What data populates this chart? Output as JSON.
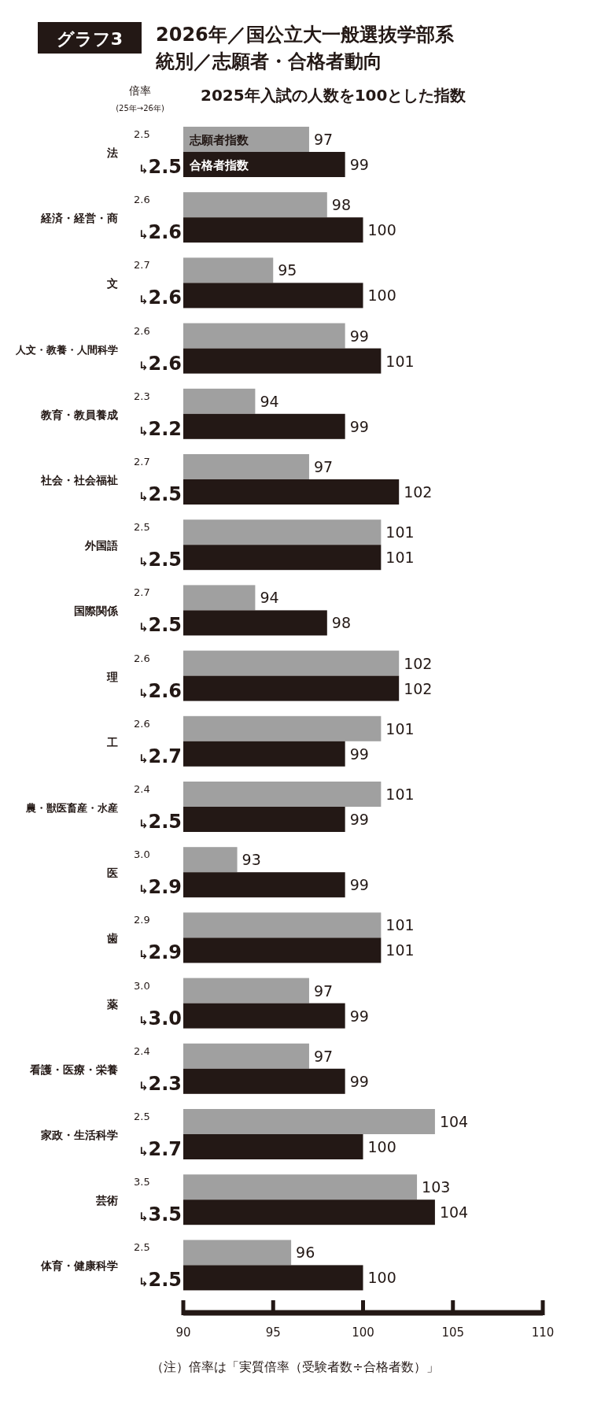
{
  "chart_data": {
    "type": "bar",
    "orientation": "horizontal",
    "title": "2026年／国公立大一般選抜学部系統別／志願者・合格者動向",
    "subtitle": "2025年入試の人数を100とした指数",
    "annotations": [
      "グラフ3",
      "倍率",
      "(25年→26年)",
      "（注）倍率は「実質倍率（受験者数÷合格者数）」",
      "2.5",
      "↳2.5",
      "2.6",
      "↳2.6",
      "2.7",
      "↳2.6",
      "2.6",
      "↳2.6",
      "2.3",
      "↳2.2",
      "2.7",
      "↳2.5",
      "2.5",
      "↳2.5",
      "2.7",
      "↳2.5",
      "2.6",
      "↳2.6",
      "2.6",
      "↳2.7",
      "2.4",
      "↳2.5",
      "3.0",
      "↳2.9",
      "2.9",
      "↳2.9",
      "3.0",
      "↳3.0",
      "2.4",
      "↳2.3",
      "2.5",
      "↳2.7",
      "3.5",
      "↳3.5",
      "2.5",
      "↳2.5"
    ],
    "categories": [
      "法",
      "経済・経営・商",
      "文",
      "人文・教養・人間科学",
      "教育・教員養成",
      "社会・社会福祉",
      "外国語",
      "国際関係",
      "理",
      "工",
      "農・獣医畜産・水産",
      "医",
      "歯",
      "薬",
      "看護・医療・栄養",
      "家政・生活科学",
      "芸術",
      "体育・健康科学"
    ],
    "series": [
      {
        "name": "志願者指数",
        "color": "#a0a0a0",
        "values": [
          97,
          98,
          95,
          99,
          94,
          97,
          101,
          94,
          102,
          101,
          101,
          93,
          101,
          97,
          97,
          104,
          103,
          96
        ]
      },
      {
        "name": "合格者指数",
        "color": "#231815",
        "values": [
          99,
          100,
          100,
          101,
          99,
          102,
          101,
          98,
          102,
          99,
          99,
          99,
          101,
          99,
          99,
          100,
          104,
          100
        ]
      }
    ],
    "xlim": [
      90,
      110
    ],
    "xticks": [
      90,
      95,
      100,
      105,
      110
    ],
    "data_labels": true,
    "legend": "top left",
    "grid": false
  }
}
